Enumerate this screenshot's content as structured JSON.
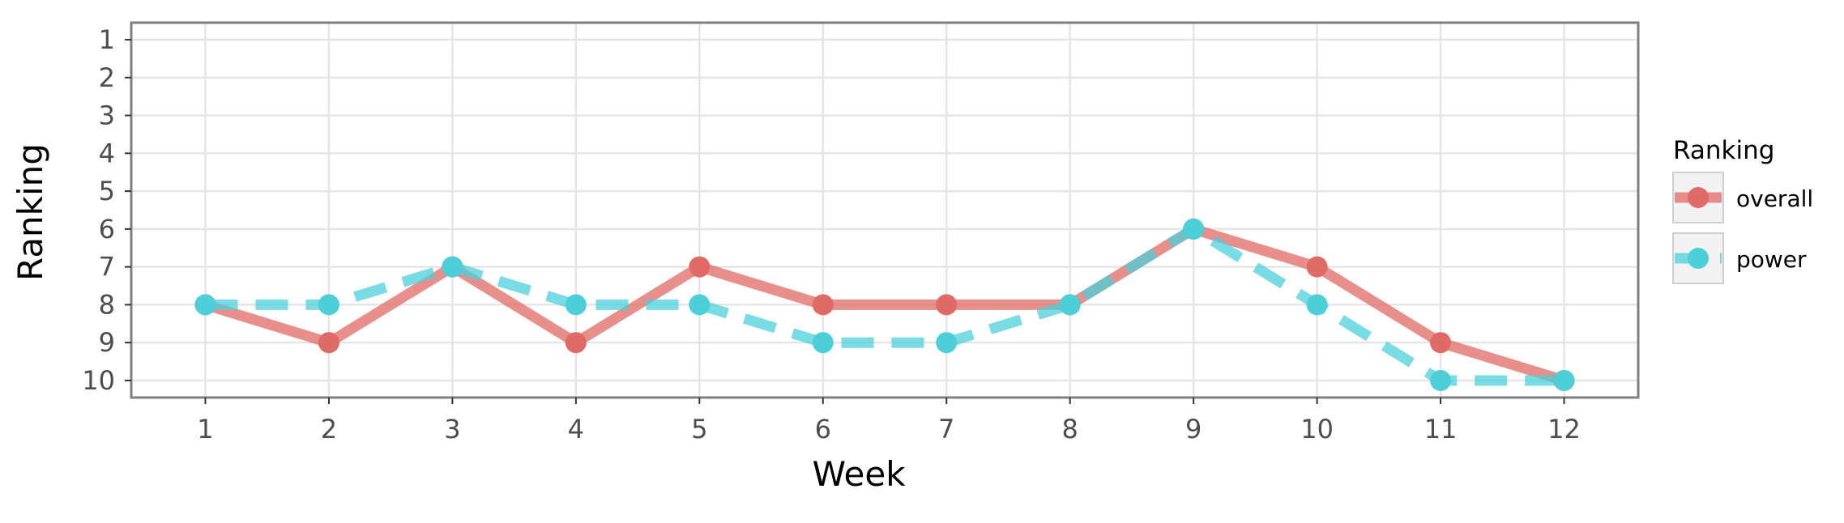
{
  "chart_data": {
    "type": "line",
    "title": "",
    "xlabel": "Week",
    "ylabel": "Ranking",
    "x": [
      1,
      2,
      3,
      4,
      5,
      6,
      7,
      8,
      9,
      10,
      11,
      12
    ],
    "x_ticks": [
      1,
      2,
      3,
      4,
      5,
      6,
      7,
      8,
      9,
      10,
      11,
      12
    ],
    "y_ticks": [
      1,
      2,
      3,
      4,
      5,
      6,
      7,
      8,
      9,
      10
    ],
    "xlim": [
      0.4,
      12.6
    ],
    "ylim": [
      10.45,
      0.55
    ],
    "y_reversed": true,
    "grid": true,
    "legend": {
      "title": "Ranking",
      "position": "right"
    },
    "series": [
      {
        "name": "overall",
        "color": "#E06A66",
        "line_style": "solid",
        "values": [
          8,
          9,
          7,
          9,
          7,
          8,
          8,
          8,
          6,
          7,
          9,
          10
        ]
      },
      {
        "name": "power",
        "color": "#4CCFD9",
        "line_style": "dashed",
        "values": [
          8,
          8,
          7,
          8,
          8,
          9,
          9,
          8,
          6,
          8,
          10,
          10
        ]
      }
    ]
  }
}
